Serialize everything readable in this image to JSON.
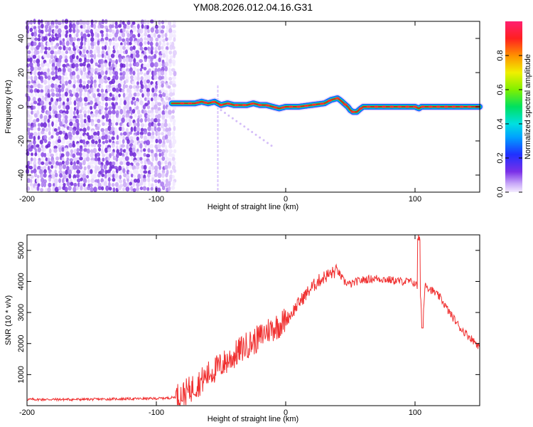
{
  "figure": {
    "title": "YM08.2026.012.04.16.G31"
  },
  "chart_data": [
    {
      "type": "heatmap",
      "xlabel": "Height of straight line (km)",
      "ylabel": "Frequency (Hz)",
      "xlim": [
        -200,
        150
      ],
      "ylim": [
        -50,
        50
      ],
      "xticks": [
        -200,
        -100,
        0,
        100
      ],
      "yticks": [
        -40,
        -20,
        0,
        20,
        40
      ],
      "noise_region_x": [
        -200,
        -85
      ],
      "signal_track": {
        "x": [
          -88,
          -80,
          -70,
          -65,
          -60,
          -55,
          -50,
          -45,
          -40,
          -35,
          -30,
          -25,
          -20,
          -15,
          -10,
          -5,
          0,
          5,
          10,
          20,
          30,
          35,
          40,
          42,
          45,
          48,
          50,
          52,
          55,
          58,
          60,
          65,
          70,
          80,
          90,
          100,
          103,
          105,
          110,
          120,
          130,
          140,
          150
        ],
        "freq": [
          2,
          2,
          2,
          3,
          2,
          3,
          1,
          2,
          1,
          1,
          1,
          2,
          1,
          1,
          0,
          -1,
          0,
          0,
          0,
          1,
          2,
          4,
          5,
          4,
          2,
          0,
          -2,
          -3,
          -3,
          -1,
          0,
          0,
          0,
          0,
          0,
          0,
          -1,
          0,
          0,
          0,
          0,
          0,
          0
        ]
      },
      "colorbar": {
        "label": "Normalized spectral amplitude",
        "range": [
          0,
          1
        ],
        "ticks": [
          "0.0",
          "0.2",
          "0.4",
          "0.6",
          "0.8"
        ],
        "tick_values": [
          0.0,
          0.2,
          0.4,
          0.6,
          0.8
        ]
      },
      "colors": {
        "noise": "#6a1fd6",
        "track_core": "#e02020",
        "track_mid": "#20d040",
        "track_edge": "#1060ff"
      }
    },
    {
      "type": "line",
      "xlabel": "Height of straight line (km)",
      "ylabel": "SNR (10 * v/v)",
      "xlim": [
        -200,
        150
      ],
      "ylim": [
        0,
        5500
      ],
      "xticks": [
        -200,
        -100,
        0,
        100
      ],
      "yticks": [
        1000,
        2000,
        3000,
        4000,
        5000
      ],
      "series": [
        {
          "name": "SNR",
          "color": "#f03030",
          "x": [
            -200,
            -180,
            -160,
            -140,
            -120,
            -100,
            -90,
            -85,
            -80,
            -75,
            -70,
            -65,
            -60,
            -55,
            -50,
            -45,
            -40,
            -35,
            -30,
            -25,
            -20,
            -15,
            -10,
            -5,
            0,
            5,
            10,
            15,
            20,
            25,
            30,
            35,
            40,
            45,
            50,
            55,
            60,
            70,
            80,
            90,
            95,
            100,
            102,
            104,
            106,
            108,
            110,
            115,
            120,
            125,
            130,
            135,
            140,
            145,
            150
          ],
          "y": [
            200,
            200,
            200,
            210,
            220,
            230,
            250,
            280,
            350,
            480,
            650,
            800,
            1000,
            1150,
            1300,
            1450,
            1600,
            1800,
            1950,
            2050,
            2200,
            2400,
            2500,
            2600,
            2750,
            3000,
            3300,
            3550,
            3800,
            4000,
            4150,
            4250,
            4350,
            4000,
            3900,
            4000,
            4050,
            4100,
            4050,
            4000,
            4000,
            3950,
            3800,
            3500,
            2700,
            4000,
            3800,
            3650,
            3450,
            3100,
            2800,
            2500,
            2300,
            2100,
            1900
          ]
        }
      ]
    }
  ]
}
